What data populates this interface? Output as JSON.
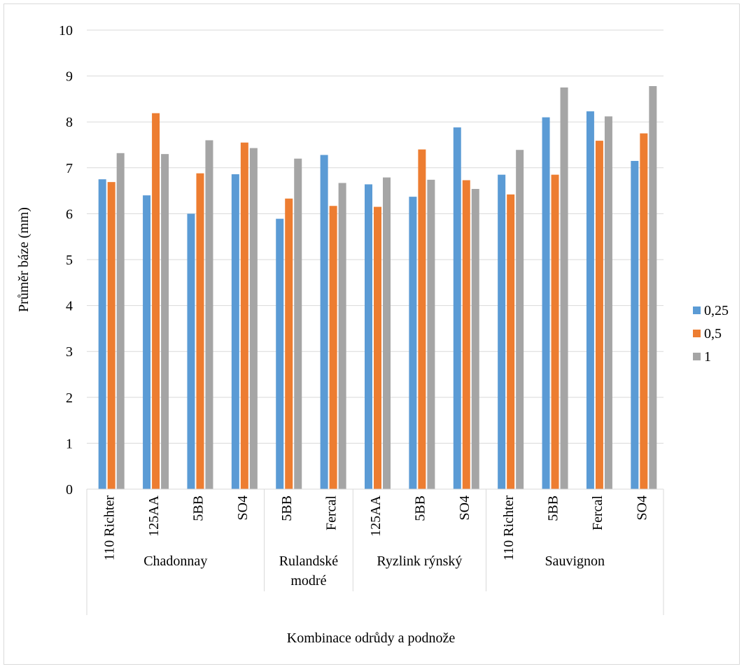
{
  "chart_data": {
    "type": "bar",
    "title": "",
    "xlabel": "Kombinace odrůdy a podnože",
    "ylabel": "Průměr báze (mm)",
    "ylim": [
      0,
      10
    ],
    "yticks": [
      "0",
      "1",
      "2",
      "3",
      "4",
      "5",
      "6",
      "7",
      "8",
      "9",
      "10"
    ],
    "grid": true,
    "legend_position": "right",
    "groups": [
      {
        "label": "Chadonnay",
        "label_lines": [
          "Chadonnay"
        ],
        "categories": [
          "110 Richter",
          "125AA",
          "5BB",
          "SO4"
        ]
      },
      {
        "label": "Rulandské modré",
        "label_lines": [
          "Rulandské",
          "modré"
        ],
        "categories": [
          "5BB",
          "Fercal"
        ]
      },
      {
        "label": "Ryzlink rýnský",
        "label_lines": [
          "Ryzlink rýnský"
        ],
        "categories": [
          "125AA",
          "5BB",
          "SO4"
        ]
      },
      {
        "label": "Sauvignon",
        "label_lines": [
          "Sauvignon"
        ],
        "categories": [
          "110 Richter",
          "5BB",
          "Fercal",
          "SO4"
        ]
      }
    ],
    "series": [
      {
        "name": "0,25",
        "color": "#5b9bd5",
        "values": [
          6.75,
          6.4,
          6.0,
          6.86,
          5.89,
          7.28,
          6.64,
          6.37,
          7.88,
          6.85,
          8.1,
          8.23,
          7.15
        ]
      },
      {
        "name": "0,5",
        "color": "#ed7d31",
        "values": [
          6.69,
          8.19,
          6.88,
          7.55,
          6.33,
          6.17,
          6.15,
          7.4,
          6.73,
          6.42,
          6.85,
          7.59,
          7.75
        ]
      },
      {
        "name": "1",
        "color": "#a5a5a5",
        "values": [
          7.32,
          7.3,
          7.6,
          7.43,
          7.2,
          6.67,
          6.79,
          6.74,
          6.54,
          7.39,
          8.75,
          8.12,
          8.78
        ]
      }
    ]
  }
}
